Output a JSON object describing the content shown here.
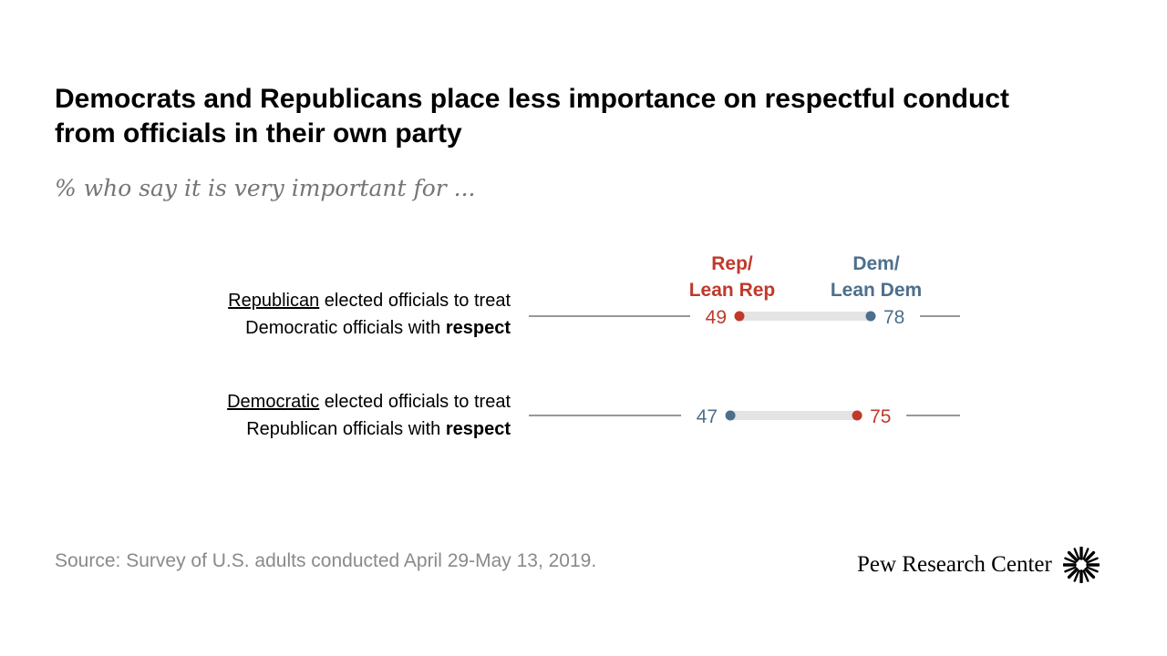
{
  "title_line1": "Democrats and Republicans place less importance on respectful conduct",
  "title_line2": "from officials in their own party",
  "subtitle": "% who say it is very important for ...",
  "legend": {
    "rep_line1": "Rep/",
    "rep_line2": "Lean Rep",
    "dem_line1": "Dem/",
    "dem_line2": "Lean Dem"
  },
  "rows": [
    {
      "label_underlined": "Republican",
      "label_rest1": " elected officials to treat",
      "label_line2_plain": "Democratic officials with ",
      "label_line2_bold": "respect"
    },
    {
      "label_underlined": "Democratic",
      "label_rest1": " elected officials to treat",
      "label_line2_plain": "Republican officials with ",
      "label_line2_bold": "respect"
    }
  ],
  "chart_data": {
    "type": "dot-plot",
    "title": "Democrats and Republicans place less importance on respectful conduct from officials in their own party",
    "subtitle": "% who say it is very important for ...",
    "xlim": [
      0,
      100
    ],
    "categories": [
      "Republican elected officials to treat Democratic officials with respect",
      "Democratic elected officials to treat Republican officials with respect"
    ],
    "series": [
      {
        "name": "Rep/Lean Rep",
        "color": "#c0392b",
        "values": [
          49,
          75
        ]
      },
      {
        "name": "Dem/Lean Dem",
        "color": "#4d6f8c",
        "values": [
          78,
          47
        ]
      }
    ]
  },
  "source": "Source: Survey of U.S. adults conducted April 29-May 13, 2019.",
  "logo_text": "Pew Research Center",
  "colors": {
    "rep": "#c0392b",
    "dem": "#4d6f8c",
    "axis": "#5a5a5a",
    "range": "#e4e4e4"
  }
}
